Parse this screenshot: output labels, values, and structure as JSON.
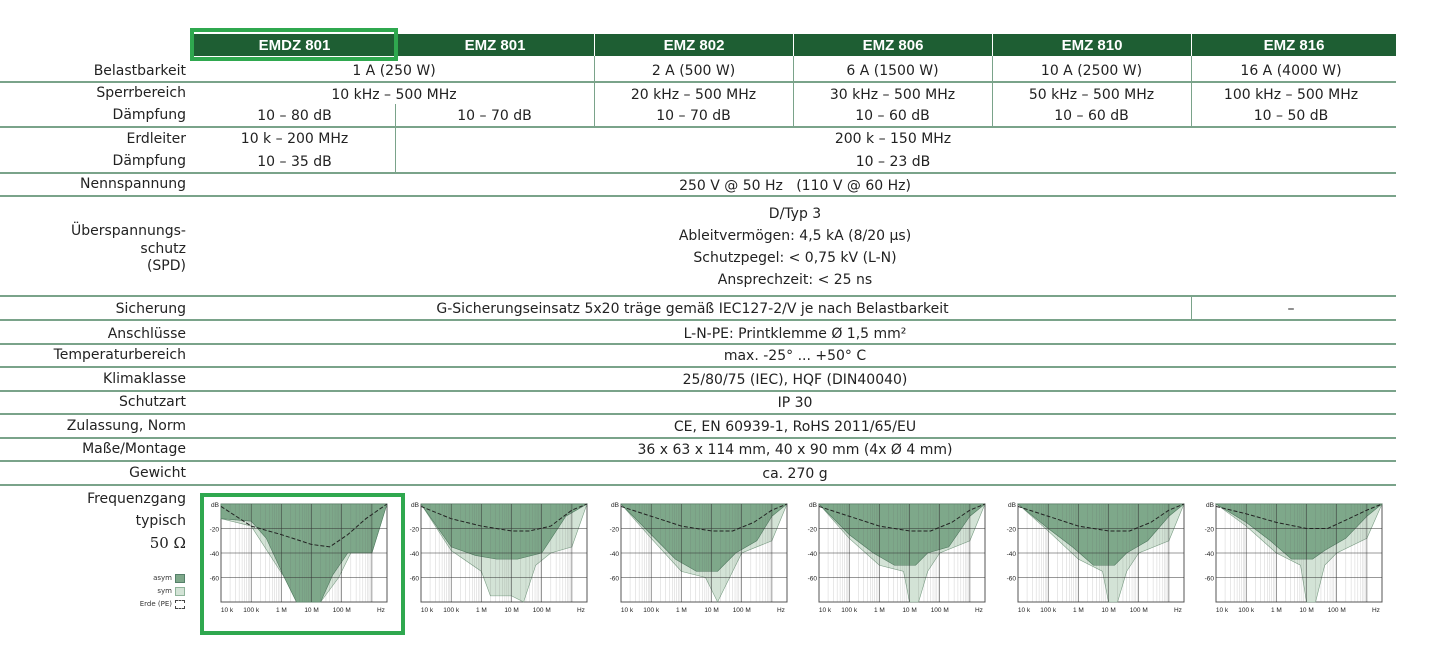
{
  "columns": [
    "EMDZ 801",
    "EMZ 801",
    "EMZ 802",
    "EMZ 806",
    "EMZ 810",
    "EMZ 816"
  ],
  "rows": {
    "belastbarkeit": {
      "label": "Belastbarkeit",
      "values": [
        "1 A (250 W)",
        "2 A (500 W)",
        "6 A (1500 W)",
        "10 A (2500 W)",
        "16 A (4000 W)"
      ]
    },
    "sperrbereich": {
      "label": "Sperrbereich",
      "values": [
        "10 kHz – 500 MHz",
        "20 kHz – 500 MHz",
        "30 kHz – 500 MHz",
        "50 kHz – 500 MHz",
        "100 kHz – 500 MHz"
      ]
    },
    "daempfung1": {
      "label": "Dämpfung",
      "values": [
        "10 – 80 dB",
        "10 – 70 dB",
        "10 – 70 dB",
        "10 – 60 dB",
        "10 – 60 dB",
        "10 – 50 dB"
      ]
    },
    "erdleiter": {
      "label": "Erdleiter",
      "values": [
        "10 k – 200 MHz",
        "200 k – 150 MHz"
      ]
    },
    "daempfung2": {
      "label": "Dämpfung",
      "values": [
        "10 – 35 dB",
        "10 – 23 dB"
      ]
    },
    "nennspannung": {
      "label": "Nennspannung",
      "value": "250 V @ 50 Hz   (110 V @ 60 Hz)"
    },
    "ueberspannung": {
      "label_lines": [
        "Überspannungs-",
        "schutz",
        "(SPD)"
      ],
      "lines": [
        "D/Typ 3",
        "Ableitvermögen: 4,5 kA (8/20 µs)",
        "Schutzpegel: < 0,75 kV (L-N)",
        "Ansprechzeit: < 25 ns"
      ]
    },
    "sicherung": {
      "label": "Sicherung",
      "value": "G-Sicherungseinsatz 5x20 träge gemäß IEC127-2/V je nach Belastbarkeit",
      "value_last": "–"
    },
    "anschluesse": {
      "label": "Anschlüsse",
      "value": "L-N-PE: Printklemme Ø 1,5 mm²"
    },
    "temperatur": {
      "label": "Temperaturbereich",
      "value": "max. -25° ... +50° C"
    },
    "klima": {
      "label": "Klimaklasse",
      "value": "25/80/75 (IEC), HQF (DIN40040)"
    },
    "schutzart": {
      "label": "Schutzart",
      "value": "IP 30"
    },
    "zulassung": {
      "label": "Zulassung, Norm",
      "value": "CE, EN 60939-1, RoHS 2011/65/EU"
    },
    "masse": {
      "label": "Maße/Montage",
      "value": "36 x 63 x 114 mm, 40 x 90 mm (4x Ø 4 mm)"
    },
    "gewicht": {
      "label": "Gewicht",
      "value": "ca. 270 g"
    },
    "frequenz": {
      "label_lines": [
        "Frequenzgang",
        "typisch",
        "50 Ω"
      ]
    }
  },
  "legend": {
    "asym": "asym",
    "sym": "sym",
    "erde": "Erde (PE)"
  },
  "chart_data": {
    "type": "area",
    "y_unit": "dB",
    "x_unit": "Hz",
    "yticks": [
      "dB",
      "-20",
      "-40",
      "-60"
    ],
    "xticks": [
      "10 k",
      "100 k",
      "1 M",
      "10 M",
      "100 M",
      "Hz"
    ],
    "ylim": [
      -80,
      0
    ],
    "series": [
      {
        "name": "asym",
        "type": "area"
      },
      {
        "name": "sym",
        "type": "area"
      },
      {
        "name": "Erde (PE)",
        "type": "line"
      }
    ],
    "charts": [
      {
        "asym": [
          [
            0,
            -12
          ],
          [
            1,
            -14
          ],
          [
            1.5,
            -28
          ],
          [
            2.1,
            -60
          ],
          [
            2.5,
            -80
          ],
          [
            3.3,
            -80
          ],
          [
            3.7,
            -58
          ],
          [
            4.2,
            -40
          ],
          [
            5,
            -40
          ],
          [
            5.5,
            0
          ]
        ],
        "sym": [
          [
            0,
            -12
          ],
          [
            1,
            -18
          ],
          [
            2.1,
            -60
          ],
          [
            2.5,
            -80
          ],
          [
            3.3,
            -80
          ],
          [
            3.9,
            -60
          ],
          [
            4.3,
            -40
          ],
          [
            5,
            -40
          ],
          [
            5.5,
            0
          ]
        ],
        "erde": [
          [
            0,
            -2
          ],
          [
            1,
            -18
          ],
          [
            2,
            -25
          ],
          [
            3,
            -33
          ],
          [
            3.6,
            -35
          ],
          [
            4.2,
            -25
          ],
          [
            4.8,
            -12
          ],
          [
            5.5,
            0
          ]
        ]
      },
      {
        "asym": [
          [
            0,
            0
          ],
          [
            1,
            -35
          ],
          [
            1.8,
            -42
          ],
          [
            2.5,
            -45
          ],
          [
            3.2,
            -45
          ],
          [
            4,
            -40
          ],
          [
            4.8,
            -10
          ],
          [
            5.5,
            0
          ]
        ],
        "sym": [
          [
            0,
            0
          ],
          [
            1,
            -38
          ],
          [
            2,
            -55
          ],
          [
            2.3,
            -75
          ],
          [
            3,
            -75
          ],
          [
            3.4,
            -80
          ],
          [
            3.8,
            -50
          ],
          [
            4.3,
            -40
          ],
          [
            5,
            -35
          ],
          [
            5.5,
            0
          ]
        ],
        "erde": [
          [
            0,
            -2
          ],
          [
            1,
            -12
          ],
          [
            2,
            -18
          ],
          [
            3,
            -22
          ],
          [
            3.6,
            -22
          ],
          [
            4.3,
            -18
          ],
          [
            5,
            -5
          ],
          [
            5.5,
            0
          ]
        ]
      },
      {
        "asym": [
          [
            0,
            0
          ],
          [
            1,
            -25
          ],
          [
            1.8,
            -45
          ],
          [
            2.5,
            -55
          ],
          [
            3.2,
            -55
          ],
          [
            3.8,
            -40
          ],
          [
            4.5,
            -30
          ],
          [
            5,
            -10
          ],
          [
            5.5,
            0
          ]
        ],
        "sym": [
          [
            0,
            0
          ],
          [
            1,
            -28
          ],
          [
            2,
            -55
          ],
          [
            2.8,
            -60
          ],
          [
            3.2,
            -80
          ],
          [
            3.6,
            -60
          ],
          [
            4,
            -40
          ],
          [
            5,
            -30
          ],
          [
            5.5,
            0
          ]
        ],
        "erde": [
          [
            0,
            -2
          ],
          [
            1,
            -10
          ],
          [
            2,
            -18
          ],
          [
            3,
            -22
          ],
          [
            3.7,
            -22
          ],
          [
            4.4,
            -15
          ],
          [
            5,
            -5
          ],
          [
            5.5,
            0
          ]
        ]
      },
      {
        "asym": [
          [
            0,
            0
          ],
          [
            1,
            -25
          ],
          [
            1.8,
            -40
          ],
          [
            2.5,
            -50
          ],
          [
            3.2,
            -50
          ],
          [
            3.6,
            -40
          ],
          [
            4.3,
            -35
          ],
          [
            5,
            -10
          ],
          [
            5.5,
            0
          ]
        ],
        "sym": [
          [
            0,
            0
          ],
          [
            1,
            -28
          ],
          [
            2,
            -50
          ],
          [
            2.8,
            -55
          ],
          [
            3,
            -80
          ],
          [
            3.3,
            -80
          ],
          [
            3.6,
            -55
          ],
          [
            4,
            -40
          ],
          [
            5,
            -30
          ],
          [
            5.5,
            0
          ]
        ],
        "erde": [
          [
            0,
            -2
          ],
          [
            1,
            -10
          ],
          [
            2,
            -18
          ],
          [
            3,
            -22
          ],
          [
            3.7,
            -22
          ],
          [
            4.4,
            -15
          ],
          [
            5,
            -5
          ],
          [
            5.5,
            0
          ]
        ]
      },
      {
        "asym": [
          [
            0,
            0
          ],
          [
            1,
            -20
          ],
          [
            1.8,
            -35
          ],
          [
            2.5,
            -50
          ],
          [
            3.2,
            -50
          ],
          [
            3.6,
            -40
          ],
          [
            4.3,
            -30
          ],
          [
            5,
            -10
          ],
          [
            5.5,
            0
          ]
        ],
        "sym": [
          [
            0,
            0
          ],
          [
            1,
            -22
          ],
          [
            2,
            -45
          ],
          [
            2.8,
            -55
          ],
          [
            3,
            -80
          ],
          [
            3.3,
            -80
          ],
          [
            3.6,
            -55
          ],
          [
            4,
            -40
          ],
          [
            5,
            -30
          ],
          [
            5.5,
            0
          ]
        ],
        "erde": [
          [
            0,
            -2
          ],
          [
            1,
            -10
          ],
          [
            2,
            -18
          ],
          [
            3,
            -22
          ],
          [
            3.7,
            -22
          ],
          [
            4.4,
            -15
          ],
          [
            5,
            -5
          ],
          [
            5.5,
            0
          ]
        ]
      },
      {
        "asym": [
          [
            0,
            0
          ],
          [
            1,
            -15
          ],
          [
            1.8,
            -30
          ],
          [
            2.5,
            -45
          ],
          [
            3.2,
            -45
          ],
          [
            3.6,
            -38
          ],
          [
            4.3,
            -28
          ],
          [
            5,
            -10
          ],
          [
            5.5,
            0
          ]
        ],
        "sym": [
          [
            0,
            0
          ],
          [
            1,
            -18
          ],
          [
            2,
            -40
          ],
          [
            2.8,
            -50
          ],
          [
            3,
            -80
          ],
          [
            3.3,
            -80
          ],
          [
            3.6,
            -50
          ],
          [
            4,
            -40
          ],
          [
            5,
            -28
          ],
          [
            5.5,
            0
          ]
        ],
        "erde": [
          [
            0,
            -2
          ],
          [
            1,
            -8
          ],
          [
            2,
            -15
          ],
          [
            3,
            -20
          ],
          [
            3.7,
            -20
          ],
          [
            4.4,
            -12
          ],
          [
            5,
            -5
          ],
          [
            5.5,
            0
          ]
        ]
      }
    ]
  },
  "colors": {
    "header_bg": "#1e5e33",
    "rule": "#7aa38a",
    "highlight": "#2fa84f",
    "asym_fill": "#7ea88a",
    "sym_fill": "#d3e3d6"
  }
}
